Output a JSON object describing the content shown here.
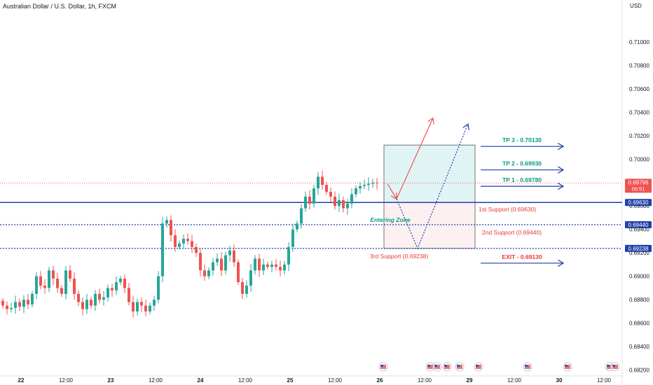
{
  "header": {
    "title": "Australian Dollar / U.S. Dollar, 1h, FXCM",
    "currency": "USD"
  },
  "colors": {
    "up": "#26a69a",
    "down": "#ef5350",
    "level_line": "#1e3fa8",
    "price_line": "#ef5350",
    "tp_text": "#089981",
    "support_text": "#e53935",
    "exit_text": "#1e3fa8"
  },
  "chart_data": {
    "type": "candlestick",
    "ylim": [
      0.6815,
      0.7125
    ],
    "y_ticks": [
      "0.71000",
      "0.70800",
      "0.70600",
      "0.70400",
      "0.70200",
      "0.70000",
      "0.69800",
      "0.69600",
      "0.69400",
      "0.69200",
      "0.69000",
      "0.68800",
      "0.68600",
      "0.68400",
      "0.68200"
    ],
    "x_ticks": [
      "22",
      "12:00",
      "23",
      "12:00",
      "24",
      "12:00",
      "25",
      "12:00",
      "26",
      "12:00",
      "29",
      "12:00",
      "30",
      "12:00"
    ],
    "x_tick_bold": [
      "22",
      "23",
      "24",
      "25",
      "26",
      "29",
      "30"
    ],
    "current_price": {
      "label": "0.69796",
      "countdown": "00:51",
      "value": 0.69796
    },
    "level_labels": {
      "first_support": "0.69630",
      "second_support": "0.69440",
      "third_support": "0.69238"
    },
    "levels": [
      0.6963,
      0.6944,
      0.69238
    ],
    "annotations": {
      "tp3": "TP 3 - 0.70130",
      "tp2": "TP 2 - 0.69930",
      "tp1": "TP 1 - 0.69780",
      "first_support": "1st Support (0.69630)",
      "second_support": "2nd Support (0.69440)",
      "third_support": "3rd Support (0.69238)",
      "exit": "EXIT - 0.69130",
      "entering_zone": "Entering Zone"
    },
    "target_box": {
      "top": 0.7012,
      "bottom": 0.6963
    },
    "stop_box": {
      "top": 0.6963,
      "bottom": 0.69238
    },
    "closes": [
      0.6875,
      0.6872,
      0.6873,
      0.6878,
      0.6874,
      0.688,
      0.6876,
      0.6885,
      0.69,
      0.6892,
      0.689,
      0.6905,
      0.6898,
      0.689,
      0.6885,
      0.6905,
      0.6898,
      0.6885,
      0.6878,
      0.6872,
      0.688,
      0.6875,
      0.6885,
      0.688,
      0.6882,
      0.689,
      0.6888,
      0.6895,
      0.6898,
      0.689,
      0.6878,
      0.687,
      0.6878,
      0.6875,
      0.687,
      0.6875,
      0.688,
      0.69,
      0.6945,
      0.6948,
      0.6935,
      0.6925,
      0.6928,
      0.6932,
      0.693,
      0.6925,
      0.692,
      0.6905,
      0.69,
      0.6905,
      0.6912,
      0.6915,
      0.6905,
      0.6918,
      0.6922,
      0.6912,
      0.6895,
      0.6885,
      0.6892,
      0.6905,
      0.6915,
      0.6905,
      0.691,
      0.6908,
      0.691,
      0.6908,
      0.6905,
      0.691,
      0.6925,
      0.694,
      0.6945,
      0.6958,
      0.6968,
      0.6962,
      0.6975,
      0.6985,
      0.6978,
      0.6972,
      0.6968,
      0.696,
      0.6965,
      0.6958,
      0.6962,
      0.697,
      0.6975,
      0.6977,
      0.6978,
      0.6979,
      0.698,
      0.69796
    ]
  }
}
